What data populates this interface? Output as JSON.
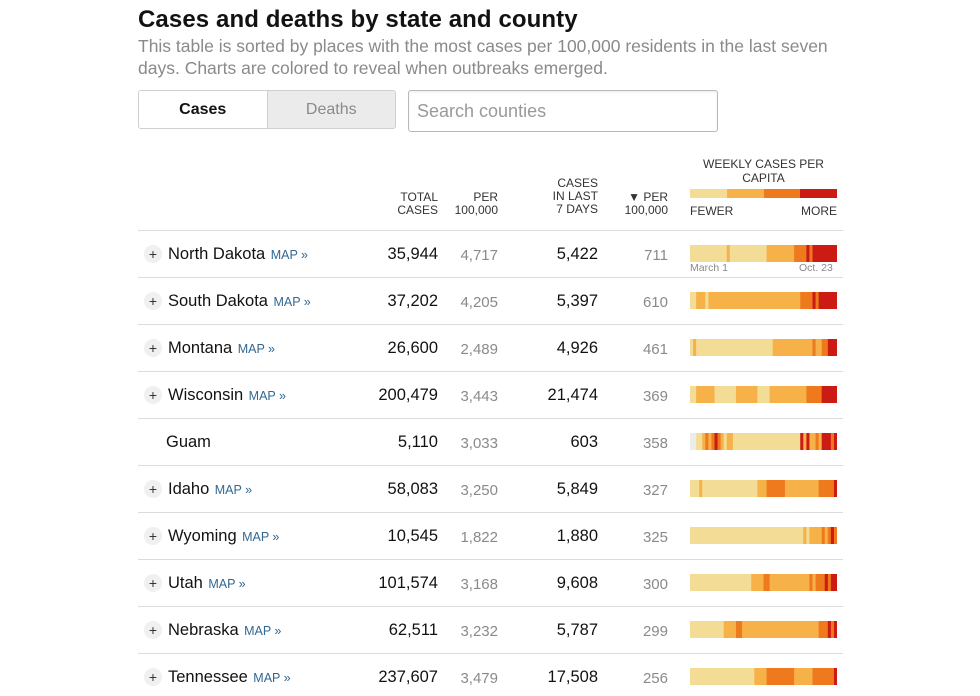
{
  "header": {
    "title": "Cases and deaths by state and county",
    "subtitle": "This table is sorted by places with the most cases per 100,000 residents in the last seven days. Charts are colored to reveal when outbreaks emerged."
  },
  "toggle": {
    "cases_label": "Cases",
    "deaths_label": "Deaths"
  },
  "search": {
    "placeholder": "Search counties"
  },
  "columns": {
    "total_line1": "TOTAL",
    "total_line2": "CASES",
    "per_line1": "PER",
    "per_line2": "100,000",
    "last7_line1": "CASES",
    "last7_line2": "IN LAST",
    "last7_line3": "7 DAYS",
    "per7_line1": "▼ PER",
    "per7_line2": "100,000",
    "weekly_title": "WEEKLY CASES PER CAPITA",
    "fewer": "FEWER",
    "more": "MORE"
  },
  "legend_colors": [
    "#f3dc95",
    "#f6b249",
    "#ef7a1d",
    "#cc1a15"
  ],
  "map_label": "MAP »",
  "first_row_labels": {
    "start": "March 1",
    "end": "Oct. 23"
  },
  "rows": [
    {
      "name": "North Dakota",
      "has_map": true,
      "total": "35,944",
      "per100k": "4,717",
      "last7": "5,422",
      "per100k_7": "711",
      "weekly": [
        0,
        0,
        0,
        0,
        0,
        0,
        0,
        0,
        0,
        0,
        0,
        0,
        1,
        0,
        0,
        0,
        0,
        0,
        0,
        0,
        0,
        0,
        0,
        0,
        0,
        1,
        1,
        1,
        1,
        1,
        1,
        1,
        1,
        1,
        2,
        2,
        2,
        2,
        3,
        2,
        3,
        3,
        3,
        3,
        3,
        3,
        3,
        3
      ]
    },
    {
      "name": "South Dakota",
      "has_map": true,
      "total": "37,202",
      "per100k": "4,205",
      "last7": "5,397",
      "per100k_7": "610",
      "weekly": [
        0,
        0,
        1,
        1,
        1,
        0,
        1,
        1,
        1,
        1,
        1,
        1,
        1,
        1,
        1,
        1,
        1,
        1,
        1,
        1,
        1,
        1,
        1,
        1,
        1,
        1,
        1,
        1,
        1,
        1,
        1,
        1,
        1,
        1,
        1,
        1,
        2,
        2,
        2,
        2,
        3,
        2,
        3,
        3,
        3,
        3,
        3,
        3
      ]
    },
    {
      "name": "Montana",
      "has_map": true,
      "total": "26,600",
      "per100k": "2,489",
      "last7": "4,926",
      "per100k_7": "461",
      "weekly": [
        0,
        1,
        0,
        0,
        0,
        0,
        0,
        0,
        0,
        0,
        0,
        0,
        0,
        0,
        0,
        0,
        0,
        0,
        0,
        0,
        0,
        0,
        0,
        0,
        0,
        0,
        0,
        1,
        1,
        1,
        1,
        1,
        1,
        1,
        1,
        1,
        1,
        1,
        1,
        1,
        2,
        1,
        1,
        2,
        2,
        3,
        3,
        3
      ]
    },
    {
      "name": "Wisconsin",
      "has_map": true,
      "total": "200,479",
      "per100k": "3,443",
      "last7": "21,474",
      "per100k_7": "369",
      "weekly": [
        0,
        0,
        1,
        1,
        1,
        1,
        1,
        1,
        0,
        0,
        0,
        0,
        0,
        0,
        0,
        1,
        1,
        1,
        1,
        1,
        1,
        1,
        0,
        0,
        0,
        0,
        1,
        1,
        1,
        1,
        1,
        1,
        1,
        1,
        1,
        1,
        1,
        1,
        2,
        2,
        2,
        2,
        2,
        3,
        3,
        3,
        3,
        3
      ]
    },
    {
      "name": "Guam",
      "has_map": false,
      "total": "5,110",
      "per100k": "3,033",
      "last7": "603",
      "per100k_7": "358",
      "weekly": [
        -1,
        -1,
        0,
        0,
        1,
        2,
        1,
        2,
        3,
        2,
        1,
        0,
        1,
        1,
        0,
        0,
        0,
        0,
        0,
        0,
        0,
        0,
        0,
        0,
        0,
        0,
        0,
        0,
        0,
        0,
        0,
        0,
        0,
        0,
        0,
        0,
        3,
        1,
        3,
        1,
        1,
        2,
        1,
        3,
        3,
        3,
        2,
        3
      ]
    },
    {
      "name": "Idaho",
      "has_map": true,
      "total": "58,083",
      "per100k": "3,250",
      "last7": "5,849",
      "per100k_7": "327",
      "weekly": [
        0,
        0,
        0,
        1,
        0,
        0,
        0,
        0,
        0,
        0,
        0,
        0,
        0,
        0,
        0,
        0,
        0,
        0,
        0,
        0,
        0,
        0,
        1,
        1,
        1,
        2,
        2,
        2,
        2,
        2,
        2,
        1,
        1,
        1,
        1,
        1,
        1,
        1,
        1,
        1,
        1,
        1,
        2,
        2,
        2,
        2,
        2,
        3
      ]
    },
    {
      "name": "Wyoming",
      "has_map": true,
      "total": "10,545",
      "per100k": "1,822",
      "last7": "1,880",
      "per100k_7": "325",
      "weekly": [
        0,
        0,
        0,
        0,
        0,
        0,
        0,
        0,
        0,
        0,
        0,
        0,
        0,
        0,
        0,
        0,
        0,
        0,
        0,
        0,
        0,
        0,
        0,
        0,
        0,
        0,
        0,
        0,
        0,
        0,
        0,
        0,
        0,
        0,
        0,
        0,
        0,
        1,
        0,
        1,
        1,
        1,
        1,
        2,
        1,
        2,
        3,
        2
      ]
    },
    {
      "name": "Utah",
      "has_map": true,
      "total": "101,574",
      "per100k": "3,168",
      "last7": "9,608",
      "per100k_7": "300",
      "weekly": [
        0,
        0,
        0,
        0,
        0,
        0,
        0,
        0,
        0,
        0,
        0,
        0,
        0,
        0,
        0,
        0,
        0,
        0,
        0,
        0,
        1,
        1,
        1,
        1,
        2,
        2,
        1,
        1,
        1,
        1,
        1,
        1,
        1,
        1,
        1,
        1,
        1,
        1,
        1,
        2,
        1,
        2,
        2,
        2,
        3,
        2,
        3,
        3
      ]
    },
    {
      "name": "Nebraska",
      "has_map": true,
      "total": "62,511",
      "per100k": "3,232",
      "last7": "5,787",
      "per100k_7": "299",
      "weekly": [
        0,
        0,
        0,
        0,
        0,
        0,
        0,
        0,
        0,
        0,
        0,
        1,
        1,
        1,
        1,
        2,
        2,
        1,
        1,
        1,
        1,
        1,
        1,
        1,
        1,
        1,
        1,
        1,
        1,
        1,
        1,
        1,
        1,
        1,
        1,
        1,
        1,
        1,
        1,
        1,
        1,
        1,
        2,
        2,
        2,
        3,
        2,
        3
      ]
    },
    {
      "name": "Tennessee",
      "has_map": true,
      "total": "237,607",
      "per100k": "3,479",
      "last7": "17,508",
      "per100k_7": "256",
      "weekly": [
        0,
        0,
        0,
        0,
        0,
        0,
        0,
        0,
        0,
        0,
        0,
        0,
        0,
        0,
        0,
        0,
        0,
        0,
        0,
        0,
        0,
        1,
        1,
        1,
        1,
        2,
        2,
        2,
        2,
        2,
        2,
        2,
        2,
        2,
        1,
        1,
        1,
        1,
        1,
        1,
        2,
        2,
        2,
        2,
        2,
        2,
        2,
        3
      ]
    }
  ]
}
